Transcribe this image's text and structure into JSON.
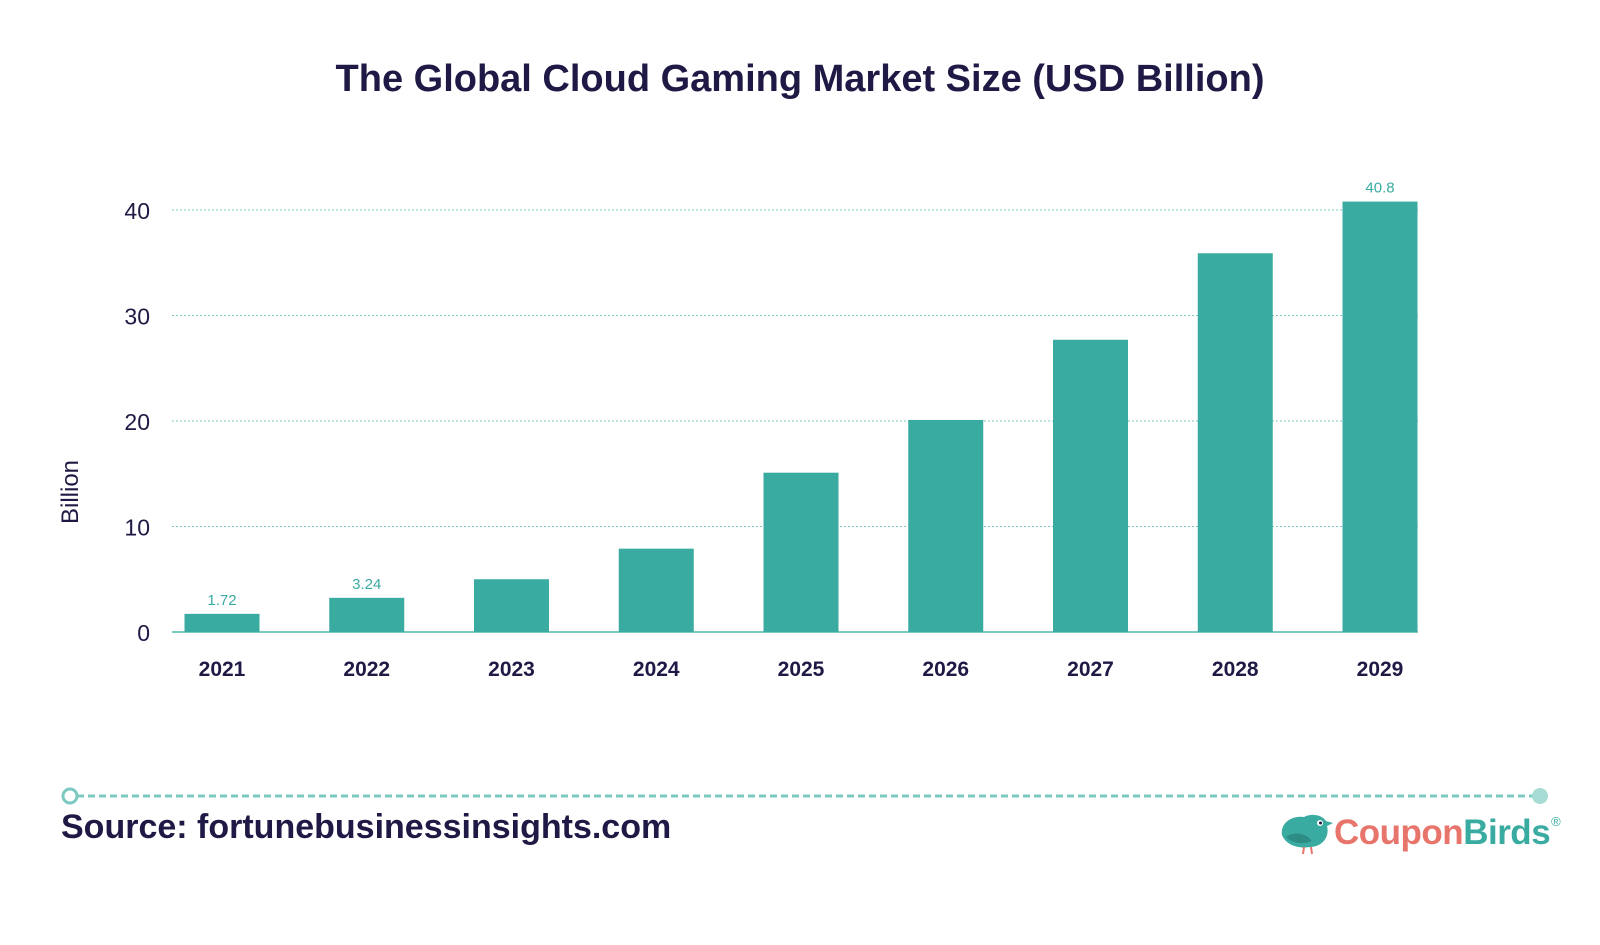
{
  "chart_data": {
    "type": "bar",
    "title": "The Global Cloud Gaming Market Size (USD Billion)",
    "ylabel": "Billion",
    "xlabel": "",
    "categories": [
      "2021",
      "2022",
      "2023",
      "2024",
      "2025",
      "2026",
      "2027",
      "2028",
      "2029"
    ],
    "values": [
      1.72,
      3.24,
      5.0,
      7.9,
      15.1,
      20.1,
      27.7,
      35.9,
      40.8
    ],
    "data_labels": [
      "1.72",
      "3.24",
      "",
      "",
      "",
      "",
      "",
      "",
      "40.8"
    ],
    "yticks": [
      "0",
      "10",
      "20",
      "30",
      "40"
    ],
    "ylim": [
      0,
      40
    ],
    "grid": true,
    "colors": {
      "bar": "#3aaba1",
      "grid": "#7cc9c1",
      "label": "#3aaba1",
      "text": "#1f1a45"
    }
  },
  "footer": {
    "source": "Source: fortunebusinessinsights.com",
    "brand_part1": "Coupon",
    "brand_part2": "Birds",
    "brand_reg": "®",
    "brand_icon": "bird-logo-icon"
  }
}
